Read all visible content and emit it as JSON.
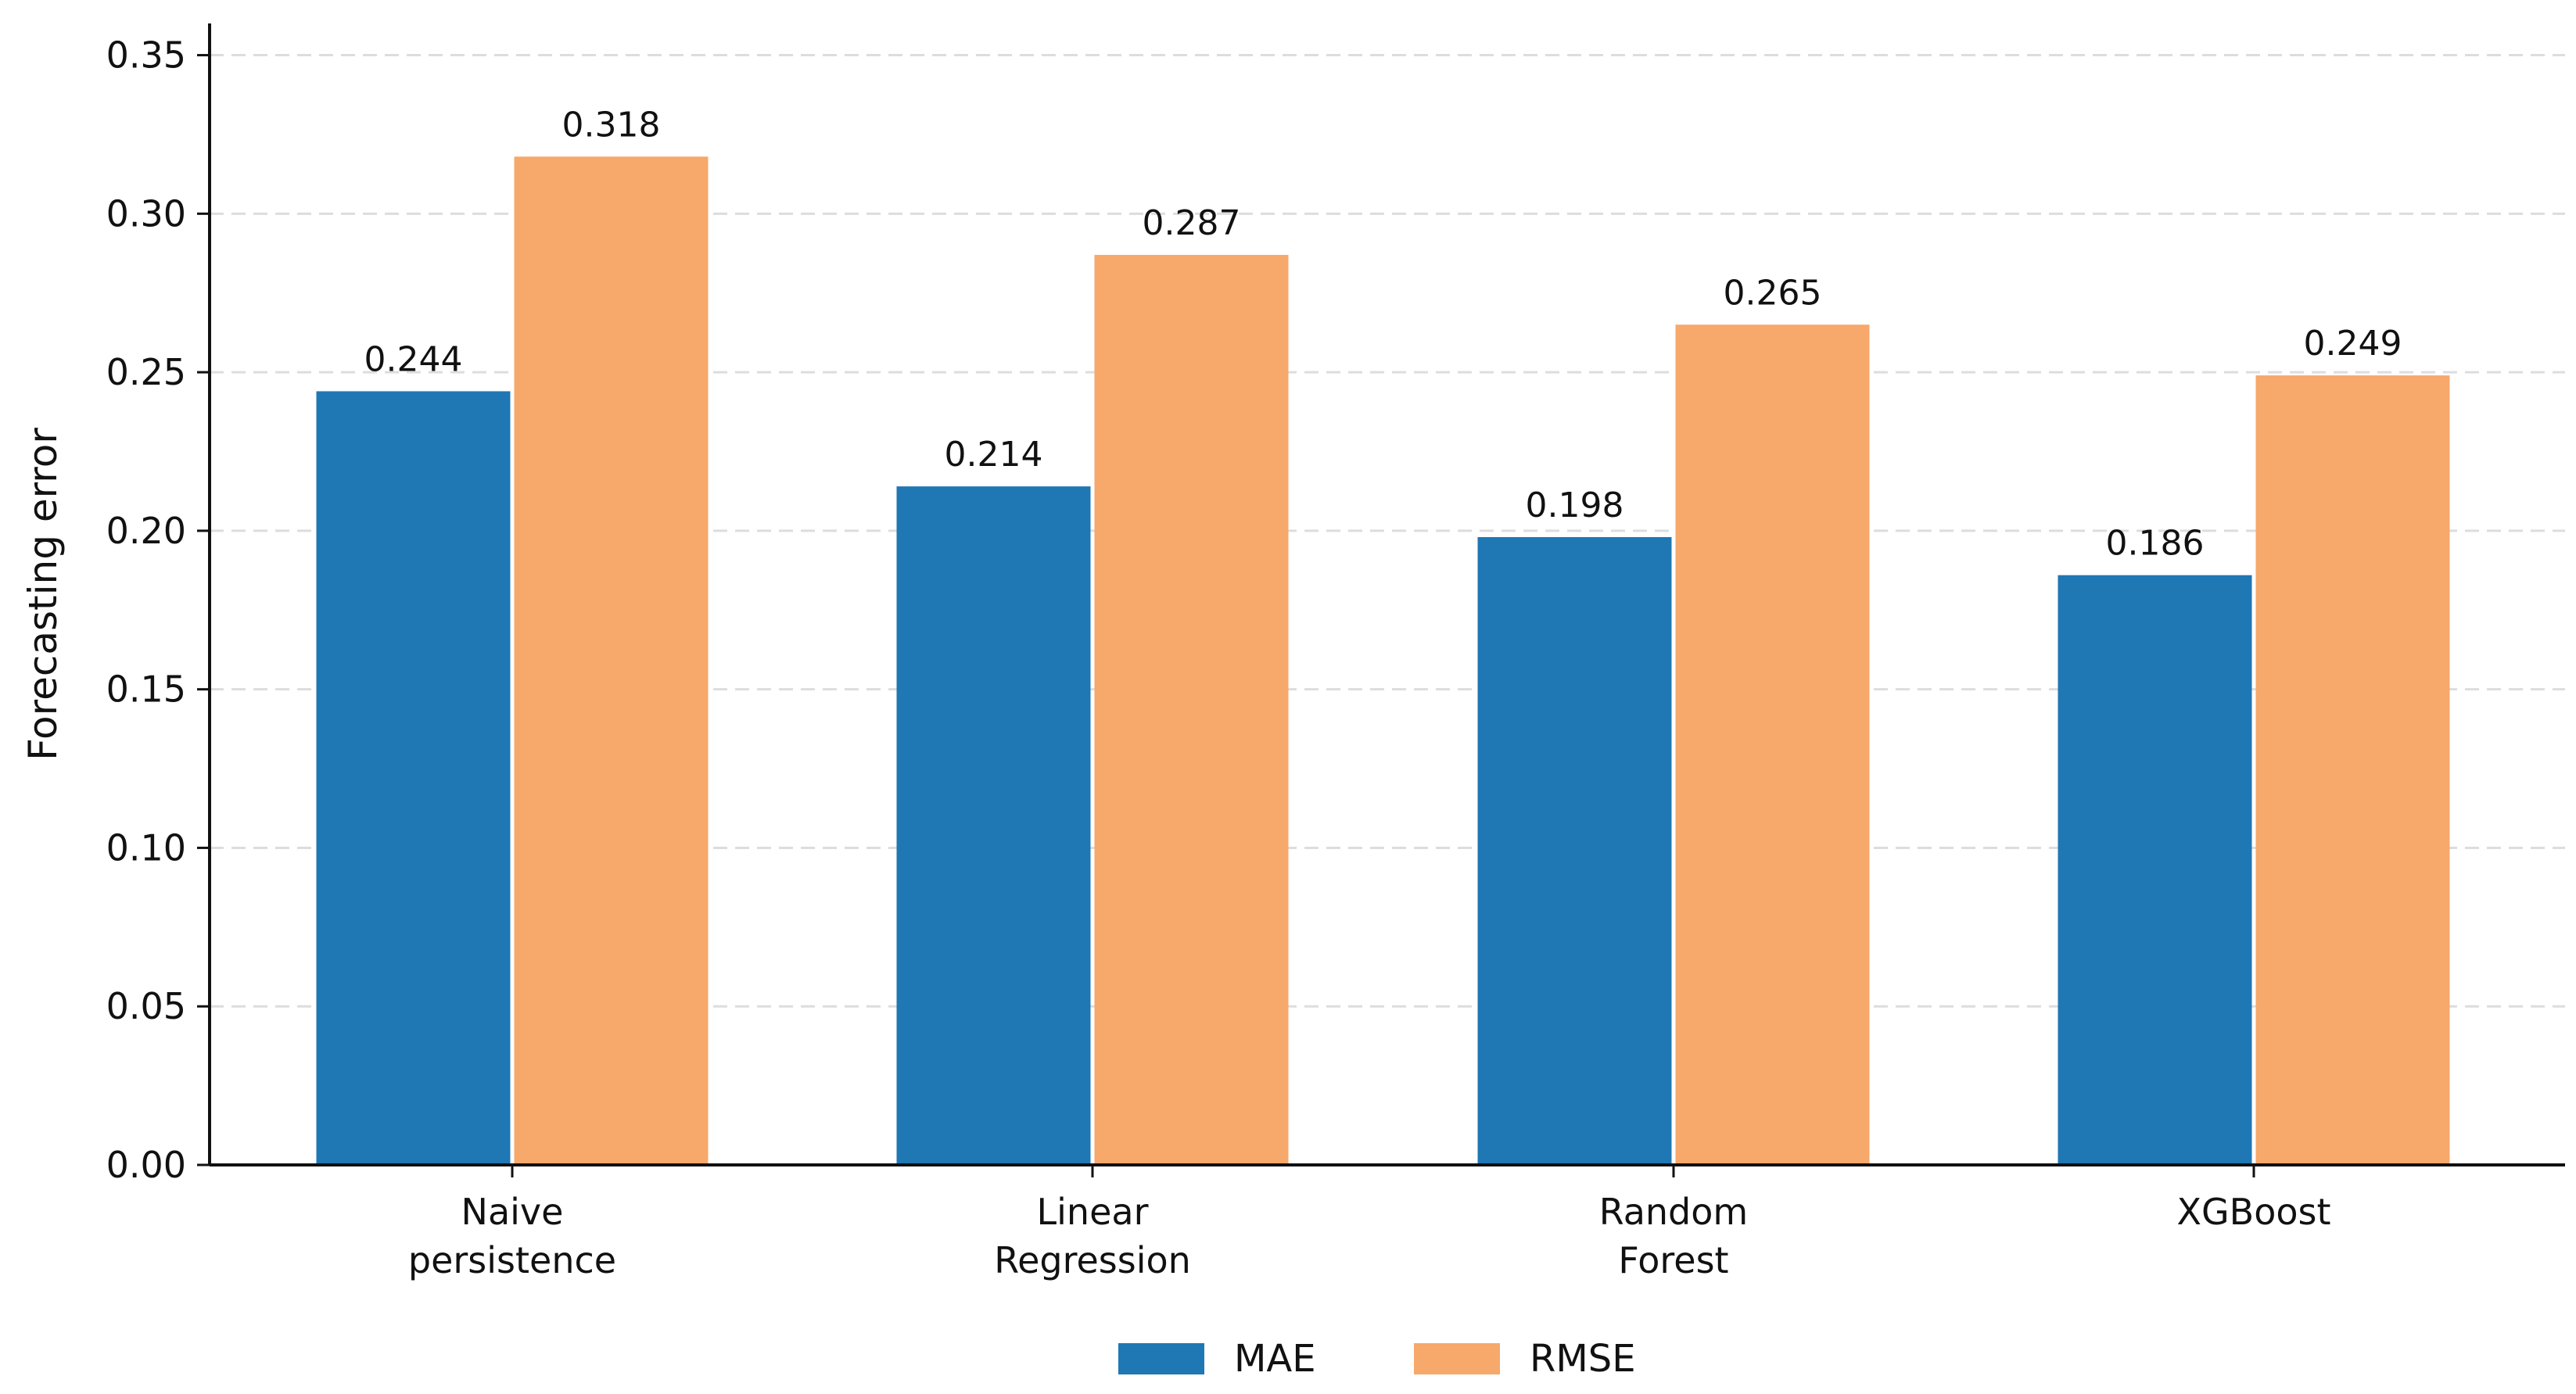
{
  "chart_data": {
    "type": "bar",
    "categories": [
      [
        "Naive",
        "persistence"
      ],
      [
        "Linear",
        "Regression"
      ],
      [
        "Random",
        "Forest"
      ],
      [
        "XGBoost"
      ]
    ],
    "series": [
      {
        "name": "MAE",
        "values": [
          0.244,
          0.214,
          0.198,
          0.186
        ],
        "labels": [
          "0.244",
          "0.214",
          "0.198",
          "0.186"
        ],
        "color": "#1f77b4"
      },
      {
        "name": "RMSE",
        "values": [
          0.318,
          0.287,
          0.265,
          0.249
        ],
        "labels": [
          "0.318",
          "0.287",
          "0.265",
          "0.249"
        ],
        "color": "#f7a86b"
      }
    ],
    "title": "",
    "xlabel": "",
    "ylabel": "Forecasting error",
    "ylim": [
      0,
      0.36
    ],
    "yticks": [
      "0.00",
      "0.05",
      "0.10",
      "0.15",
      "0.20",
      "0.25",
      "0.30",
      "0.35"
    ],
    "grid": "horizontal dashed",
    "legend_position": "bottom-center"
  }
}
